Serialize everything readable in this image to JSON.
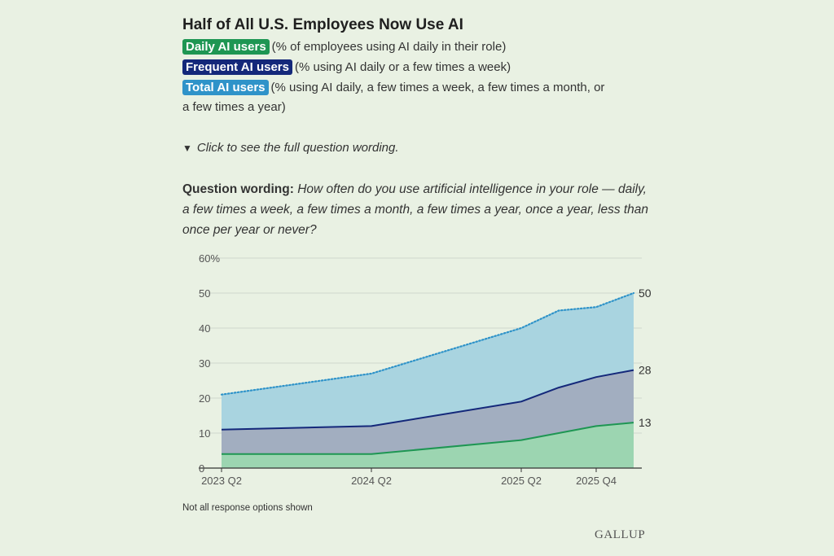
{
  "title": "Half of All U.S. Employees Now Use AI",
  "legend": [
    {
      "key": "daily",
      "label": "Daily AI users",
      "desc": "(% of employees using AI daily in their role)",
      "color": "#1e9653"
    },
    {
      "key": "frequent",
      "label": "Frequent AI users",
      "desc": "(% using AI daily or a few times a week)",
      "color": "#14287a"
    },
    {
      "key": "total",
      "label": "Total AI users",
      "desc_line1": "(% using AI daily, a few times a week, a few times a month, or",
      "desc_line2": "a few times a year)",
      "color": "#2f93c9"
    }
  ],
  "toggle": {
    "label": "Click to see the full question wording."
  },
  "question": {
    "label": "Question wording:",
    "text": "How often do you use artificial intelligence in your role — daily, a few times a week, a few times a month, a few times a year, once a year, less than once per year or never?"
  },
  "footnote": "Not all response options shown",
  "logo": "GALLUP",
  "chart_data": {
    "type": "area",
    "x_labels": [
      "2023 Q2",
      "2024 Q2",
      "2025 Q2",
      "2025 Q4"
    ],
    "x": [
      0,
      4,
      8,
      9,
      10,
      11
    ],
    "x_label_positions": [
      0,
      4,
      8,
      10
    ],
    "y_ticks": [
      "60%",
      "50",
      "40",
      "30",
      "20",
      "10",
      "0"
    ],
    "ylim": [
      0,
      60
    ],
    "series": [
      {
        "name": "Total AI users",
        "key": "total",
        "values": [
          21,
          27,
          40,
          45,
          46,
          50
        ],
        "line": "dotted",
        "color": "#2f93c9",
        "fill": "#a9d4e0"
      },
      {
        "name": "Frequent AI users",
        "key": "frequent",
        "values": [
          11,
          12,
          19,
          23,
          26,
          28
        ],
        "line": "solid",
        "color": "#14287a",
        "fill": "#a2aec0"
      },
      {
        "name": "Daily AI users",
        "key": "daily",
        "values": [
          4,
          4,
          8,
          10,
          12,
          13
        ],
        "line": "solid",
        "color": "#1e9653",
        "fill": "#9cd5b1"
      }
    ],
    "end_labels": [
      "50",
      "28",
      "13"
    ]
  }
}
